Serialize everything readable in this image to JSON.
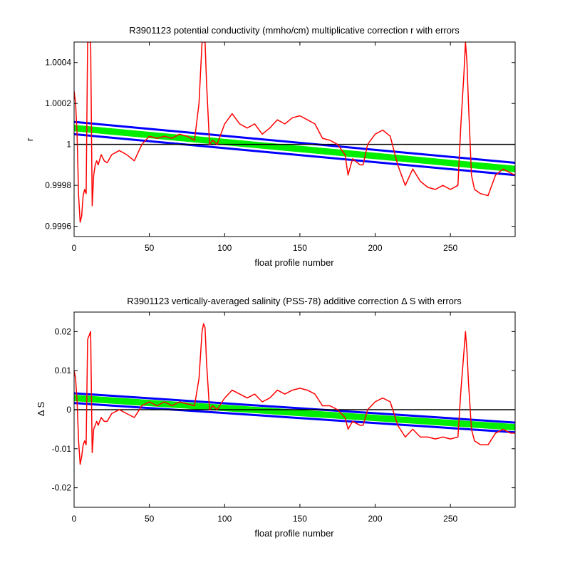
{
  "chart_data": [
    {
      "type": "line",
      "title": "R3901123 potential conductivity (mmho/cm) multiplicative correction r with errors",
      "xlabel": "float profile number",
      "ylabel": "r",
      "xlim": [
        0,
        293
      ],
      "ylim": [
        0.99955,
        1.0005
      ],
      "x_ticks": [
        0,
        50,
        100,
        150,
        200,
        250
      ],
      "x_tick_labels": [
        "0",
        "50",
        "100",
        "150",
        "200",
        "250"
      ],
      "y_ticks": [
        0.9996,
        0.9998,
        1,
        1.0002,
        1.0004
      ],
      "y_tick_labels": [
        "0.9996",
        "0.9998",
        "1",
        "1.0002",
        "1.0004"
      ],
      "grid": false,
      "reference_line": 1,
      "series": [
        {
          "color": "#ff0000",
          "x": [
            0,
            1,
            2,
            3,
            4,
            5,
            6,
            7,
            8,
            9,
            10,
            11,
            12,
            13,
            14,
            15,
            16,
            18,
            20,
            22,
            25,
            30,
            35,
            40,
            45,
            50,
            55,
            60,
            65,
            70,
            75,
            80,
            83,
            85,
            86,
            87,
            88,
            90,
            92,
            95,
            100,
            105,
            110,
            115,
            120,
            125,
            130,
            135,
            140,
            145,
            150,
            155,
            160,
            165,
            170,
            175,
            180,
            182,
            185,
            190,
            192,
            195,
            200,
            205,
            210,
            215,
            220,
            225,
            230,
            235,
            240,
            245,
            250,
            255,
            257,
            259,
            260,
            261,
            262,
            264,
            266,
            270,
            275,
            280,
            285,
            290,
            293
          ],
          "values": [
            1.00026,
            1.0002,
            1.00005,
            0.99975,
            0.99962,
            0.99965,
            0.99975,
            0.99978,
            0.99976,
            1.0005,
            1.0005,
            1.0005,
            0.9997,
            0.99985,
            0.9999,
            0.99992,
            0.9999,
            0.99995,
            0.99992,
            0.99991,
            0.99995,
            0.99997,
            0.99995,
            0.99992,
            1.0,
            1.00004,
            1.00003,
            1.00004,
            1.00003,
            1.00005,
            1.00004,
            1.00002,
            1.0002,
            1.0005,
            1.0005,
            1.0005,
            1.0003,
            1.0,
            1.00002,
            1.0,
            1.0001,
            1.00015,
            1.0001,
            1.00008,
            1.0001,
            1.00005,
            1.00008,
            1.00012,
            1.0001,
            1.00013,
            1.00014,
            1.00012,
            1.0001,
            1.00003,
            1.00002,
            1.0,
            0.99995,
            0.99985,
            0.99993,
            0.9999,
            0.9999,
            1.0,
            1.00005,
            1.00007,
            1.00004,
            0.9999,
            0.9998,
            0.99988,
            0.99982,
            0.99979,
            0.99978,
            0.9998,
            0.99978,
            0.9998,
            1.0001,
            1.00035,
            1.0005,
            1.0004,
            1.0002,
            0.99985,
            0.99978,
            0.99976,
            0.99975,
            0.99985,
            0.99988,
            0.99986,
            0.99985
          ]
        },
        {
          "color": "#0000ff",
          "x": [
            0,
            293
          ],
          "values": [
            1.00011,
            0.99991
          ]
        },
        {
          "color": "#0000ff",
          "x": [
            0,
            293
          ],
          "values": [
            1.00005,
            0.99985
          ]
        },
        {
          "color": "#00ee00",
          "x": [
            0,
            293
          ],
          "values": [
            1.00008,
            0.99988
          ]
        }
      ]
    },
    {
      "type": "line",
      "title": "R3901123 vertically-averaged salinity (PSS-78) additive correction Δ S with errors",
      "xlabel": "float profile number",
      "ylabel": "Δ S",
      "xlim": [
        0,
        293
      ],
      "ylim": [
        -0.025,
        0.025
      ],
      "x_ticks": [
        0,
        50,
        100,
        150,
        200,
        250
      ],
      "x_tick_labels": [
        "0",
        "50",
        "100",
        "150",
        "200",
        "250"
      ],
      "y_ticks": [
        -0.02,
        -0.01,
        0,
        0.01,
        0.02
      ],
      "y_tick_labels": [
        "-0.02",
        "-0.01",
        "0",
        "0.01",
        "0.02"
      ],
      "grid": false,
      "reference_line": 0,
      "series": [
        {
          "color": "#ff0000",
          "x": [
            0,
            1,
            2,
            3,
            4,
            5,
            6,
            7,
            8,
            9,
            10,
            11,
            12,
            13,
            14,
            15,
            16,
            18,
            20,
            22,
            25,
            30,
            35,
            40,
            45,
            50,
            55,
            60,
            65,
            70,
            75,
            80,
            83,
            85,
            86,
            87,
            88,
            90,
            92,
            95,
            100,
            105,
            110,
            115,
            120,
            125,
            130,
            135,
            140,
            145,
            150,
            155,
            160,
            165,
            170,
            175,
            180,
            182,
            185,
            190,
            192,
            195,
            200,
            205,
            210,
            215,
            220,
            225,
            230,
            235,
            240,
            245,
            250,
            255,
            257,
            259,
            260,
            261,
            262,
            264,
            266,
            270,
            275,
            280,
            285,
            290,
            293
          ],
          "values": [
            0.01,
            0.008,
            0.002,
            -0.008,
            -0.014,
            -0.012,
            -0.009,
            -0.008,
            -0.009,
            0.018,
            0.019,
            0.02,
            -0.011,
            -0.005,
            -0.004,
            -0.003,
            -0.004,
            -0.002,
            -0.003,
            -0.003,
            -0.001,
            0.0,
            -0.001,
            -0.002,
            0.001,
            0.002,
            0.001,
            0.002,
            0.001,
            0.002,
            0.0015,
            0.001,
            0.008,
            0.02,
            0.022,
            0.021,
            0.012,
            0.0,
            0.001,
            0.0,
            0.003,
            0.005,
            0.004,
            0.003,
            0.004,
            0.002,
            0.003,
            0.005,
            0.004,
            0.005,
            0.0055,
            0.005,
            0.004,
            0.001,
            0.001,
            0.0,
            -0.002,
            -0.005,
            -0.003,
            -0.004,
            -0.004,
            0.0,
            0.002,
            0.003,
            0.002,
            -0.004,
            -0.007,
            -0.005,
            -0.007,
            -0.007,
            -0.0075,
            -0.007,
            -0.0075,
            -0.007,
            0.005,
            0.015,
            0.02,
            0.015,
            0.007,
            -0.005,
            -0.008,
            -0.009,
            -0.009,
            -0.006,
            -0.005,
            -0.006,
            -0.006
          ]
        },
        {
          "color": "#0000ff",
          "x": [
            0,
            293
          ],
          "values": [
            0.0042,
            -0.0033
          ]
        },
        {
          "color": "#0000ff",
          "x": [
            0,
            293
          ],
          "values": [
            0.0017,
            -0.0058
          ]
        },
        {
          "color": "#00ee00",
          "x": [
            0,
            293
          ],
          "values": [
            0.003,
            -0.0045
          ]
        }
      ]
    }
  ]
}
